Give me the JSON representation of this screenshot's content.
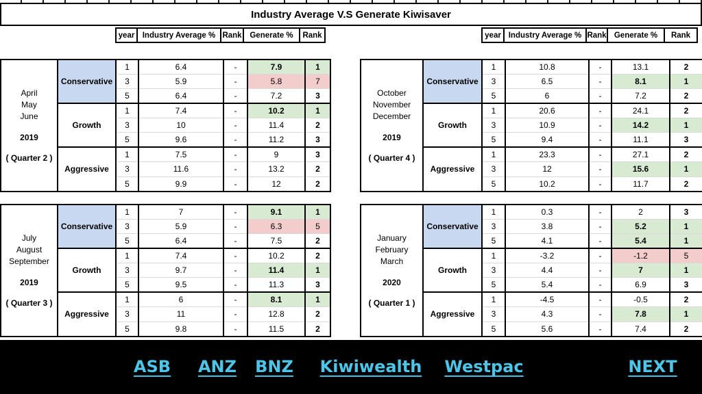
{
  "title": "Industry Average V.S Generate Kiwisaver",
  "columns": [
    "year",
    "Industry Average %",
    "Rank",
    "Generate %",
    "Rank"
  ],
  "colors": {
    "highlight_green": "#d9ead3",
    "highlight_red": "#f3cccc",
    "conservative_blue": "#c8d8f0",
    "link_cyan": "#4dc5e8",
    "footer_black": "#000000"
  },
  "quadrants": [
    {
      "months": [
        "April",
        "May",
        "June"
      ],
      "year": "2019",
      "quarter": "( Quarter 2 )",
      "categories": [
        {
          "name": "Conservative",
          "rows": [
            {
              "year": "1",
              "industry": "6.4",
              "dash": "-",
              "generate": "7.9",
              "rank": "1",
              "hl": "green"
            },
            {
              "year": "3",
              "industry": "5.9",
              "dash": "-",
              "generate": "5.8",
              "rank": "7",
              "hl": "red"
            },
            {
              "year": "5",
              "industry": "6.4",
              "dash": "-",
              "generate": "7.2",
              "rank": "3"
            }
          ]
        },
        {
          "name": "Growth",
          "rows": [
            {
              "year": "1",
              "industry": "7.4",
              "dash": "-",
              "generate": "10.2",
              "rank": "1",
              "hl": "green"
            },
            {
              "year": "3",
              "industry": "10",
              "dash": "-",
              "generate": "11.4",
              "rank": "2"
            },
            {
              "year": "5",
              "industry": "9.6",
              "dash": "-",
              "generate": "11.2",
              "rank": "3"
            }
          ]
        },
        {
          "name": "Aggressive",
          "rows": [
            {
              "year": "1",
              "industry": "7.5",
              "dash": "-",
              "generate": "9",
              "rank": "3"
            },
            {
              "year": "3",
              "industry": "11.6",
              "dash": "-",
              "generate": "13.2",
              "rank": "2"
            },
            {
              "year": "5",
              "industry": "9.9",
              "dash": "-",
              "generate": "12",
              "rank": "2"
            }
          ]
        }
      ]
    },
    {
      "months": [
        "October",
        "November",
        "December"
      ],
      "year": "2019",
      "quarter": "( Quarter 4 )",
      "categories": [
        {
          "name": "Conservative",
          "rows": [
            {
              "year": "1",
              "industry": "10.8",
              "dash": "-",
              "generate": "13.1",
              "rank": "2"
            },
            {
              "year": "3",
              "industry": "6.5",
              "dash": "-",
              "generate": "8.1",
              "rank": "1",
              "hl": "green"
            },
            {
              "year": "5",
              "industry": "6",
              "dash": "-",
              "generate": "7.2",
              "rank": "2"
            }
          ]
        },
        {
          "name": "Growth",
          "rows": [
            {
              "year": "1",
              "industry": "20.6",
              "dash": "-",
              "generate": "24.1",
              "rank": "2"
            },
            {
              "year": "3",
              "industry": "10.9",
              "dash": "-",
              "generate": "14.2",
              "rank": "1",
              "hl": "green"
            },
            {
              "year": "5",
              "industry": "9.4",
              "dash": "-",
              "generate": "11.1",
              "rank": "3"
            }
          ]
        },
        {
          "name": "Aggressive",
          "rows": [
            {
              "year": "1",
              "industry": "23.3",
              "dash": "-",
              "generate": "27.1",
              "rank": "2"
            },
            {
              "year": "3",
              "industry": "12",
              "dash": "-",
              "generate": "15.6",
              "rank": "1",
              "hl": "green"
            },
            {
              "year": "5",
              "industry": "10.2",
              "dash": "-",
              "generate": "11.7",
              "rank": "2"
            }
          ]
        }
      ]
    },
    {
      "months": [
        "July",
        "August",
        "September"
      ],
      "year": "2019",
      "quarter": "( Quarter 3 )",
      "categories": [
        {
          "name": "Conservative",
          "rows": [
            {
              "year": "1",
              "industry": "7",
              "dash": "-",
              "generate": "9.1",
              "rank": "1",
              "hl": "green"
            },
            {
              "year": "3",
              "industry": "5.9",
              "dash": "-",
              "generate": "6.3",
              "rank": "5",
              "hl": "red"
            },
            {
              "year": "5",
              "industry": "6.4",
              "dash": "-",
              "generate": "7.5",
              "rank": "2"
            }
          ]
        },
        {
          "name": "Growth",
          "rows": [
            {
              "year": "1",
              "industry": "7.4",
              "dash": "-",
              "generate": "10.2",
              "rank": "2"
            },
            {
              "year": "3",
              "industry": "9.7",
              "dash": "-",
              "generate": "11.4",
              "rank": "1",
              "hl": "green"
            },
            {
              "year": "5",
              "industry": "9.5",
              "dash": "-",
              "generate": "11.3",
              "rank": "3"
            }
          ]
        },
        {
          "name": "Aggressive",
          "rows": [
            {
              "year": "1",
              "industry": "6",
              "dash": "-",
              "generate": "8.1",
              "rank": "1",
              "hl": "green"
            },
            {
              "year": "3",
              "industry": "11",
              "dash": "-",
              "generate": "12.8",
              "rank": "2"
            },
            {
              "year": "5",
              "industry": "9.8",
              "dash": "-",
              "generate": "11.5",
              "rank": "2"
            }
          ]
        }
      ]
    },
    {
      "months": [
        "January",
        "February",
        "March"
      ],
      "year": "2020",
      "quarter": "( Quarter 1 )",
      "categories": [
        {
          "name": "Conservative",
          "rows": [
            {
              "year": "1",
              "industry": "0.3",
              "dash": "-",
              "generate": "2",
              "rank": "3"
            },
            {
              "year": "3",
              "industry": "3.8",
              "dash": "-",
              "generate": "5.2",
              "rank": "1",
              "hl": "green"
            },
            {
              "year": "5",
              "industry": "4.1",
              "dash": "-",
              "generate": "5.4",
              "rank": "1",
              "hl": "green"
            }
          ]
        },
        {
          "name": "Growth",
          "rows": [
            {
              "year": "1",
              "industry": "-3.2",
              "dash": "-",
              "generate": "-1.2",
              "rank": "5",
              "hl": "red"
            },
            {
              "year": "3",
              "industry": "4.4",
              "dash": "-",
              "generate": "7",
              "rank": "1",
              "hl": "green"
            },
            {
              "year": "5",
              "industry": "5.4",
              "dash": "-",
              "generate": "6.9",
              "rank": "3"
            }
          ]
        },
        {
          "name": "Aggressive",
          "rows": [
            {
              "year": "1",
              "industry": "-4.5",
              "dash": "-",
              "generate": "-0.5",
              "rank": "2"
            },
            {
              "year": "3",
              "industry": "4.3",
              "dash": "-",
              "generate": "7.8",
              "rank": "1",
              "hl": "green"
            },
            {
              "year": "5",
              "industry": "5.6",
              "dash": "-",
              "generate": "7.4",
              "rank": "2"
            }
          ]
        }
      ]
    }
  ],
  "footer": {
    "links": [
      {
        "label": "ASB"
      },
      {
        "label": "ANZ"
      },
      {
        "label": "BNZ"
      },
      {
        "label": "Kiwiwealth"
      },
      {
        "label": "Westpac"
      },
      {
        "label": "NEXT"
      }
    ]
  }
}
